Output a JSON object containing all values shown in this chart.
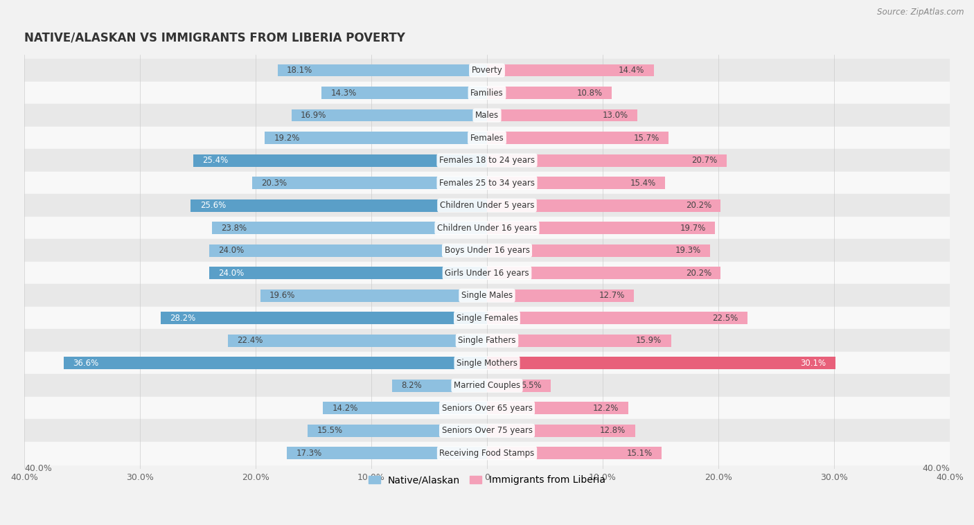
{
  "title": "NATIVE/ALASKAN VS IMMIGRANTS FROM LIBERIA POVERTY",
  "source": "Source: ZipAtlas.com",
  "categories": [
    "Poverty",
    "Families",
    "Males",
    "Females",
    "Females 18 to 24 years",
    "Females 25 to 34 years",
    "Children Under 5 years",
    "Children Under 16 years",
    "Boys Under 16 years",
    "Girls Under 16 years",
    "Single Males",
    "Single Females",
    "Single Fathers",
    "Single Mothers",
    "Married Couples",
    "Seniors Over 65 years",
    "Seniors Over 75 years",
    "Receiving Food Stamps"
  ],
  "native_values": [
    18.1,
    14.3,
    16.9,
    19.2,
    25.4,
    20.3,
    25.6,
    23.8,
    24.0,
    24.0,
    19.6,
    28.2,
    22.4,
    36.6,
    8.2,
    14.2,
    15.5,
    17.3
  ],
  "immigrant_values": [
    14.4,
    10.8,
    13.0,
    15.7,
    20.7,
    15.4,
    20.2,
    19.7,
    19.3,
    20.2,
    12.7,
    22.5,
    15.9,
    30.1,
    5.5,
    12.2,
    12.8,
    15.1
  ],
  "native_color": "#8ec0e0",
  "immigrant_color": "#f4a0b8",
  "native_highlight_indices": [
    4,
    6,
    9,
    11,
    13
  ],
  "immigrant_highlight_indices": [
    13
  ],
  "native_highlight_color": "#5a9fc8",
  "immigrant_highlight_color": "#e8607a",
  "background_color": "#f2f2f2",
  "row_colors": [
    "#e8e8e8",
    "#f8f8f8"
  ],
  "xlim": 40.0,
  "legend_native": "Native/Alaskan",
  "legend_immigrant": "Immigrants from Liberia",
  "bar_height": 0.55,
  "tick_positions": [
    -40,
    -30,
    -20,
    -10,
    0,
    10,
    20,
    30,
    40
  ],
  "tick_labels": [
    "40.0%",
    "30.0%",
    "20.0%",
    "10.0%",
    "0",
    "10.0%",
    "20.0%",
    "30.0%",
    "40.0%"
  ]
}
